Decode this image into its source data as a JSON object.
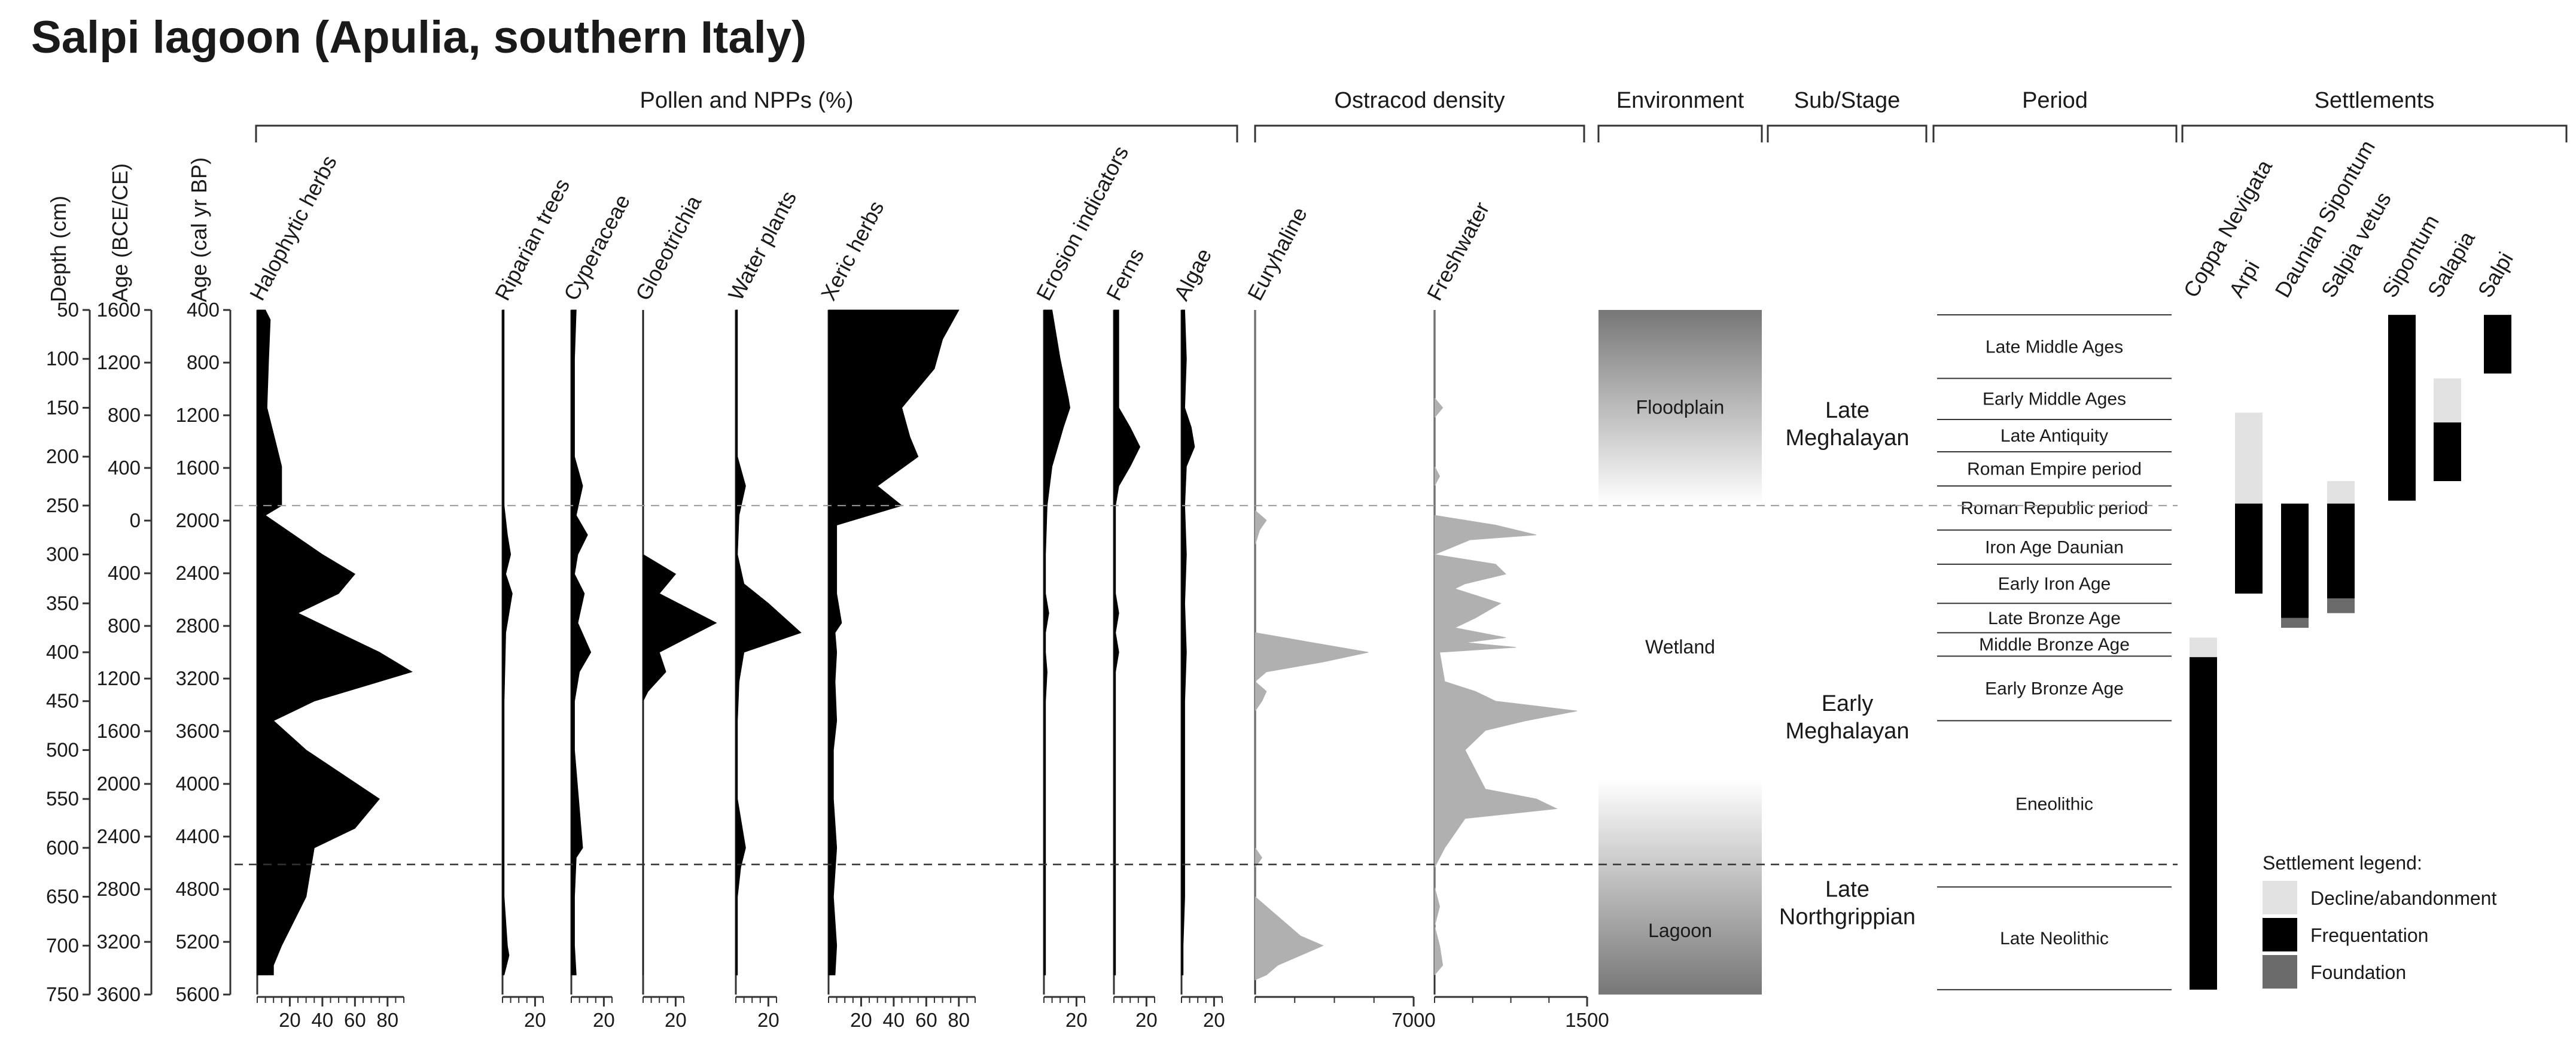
{
  "chart_data": {
    "type": "area",
    "title": "Salpi lagoon (Apulia, southern Italy)",
    "left_axes": [
      {
        "label": "Depth (cm)",
        "ticks": [
          "50",
          "100",
          "150",
          "200",
          "250",
          "300",
          "350",
          "400",
          "450",
          "500",
          "550",
          "600",
          "650",
          "700",
          "750"
        ]
      },
      {
        "label": "Age (BCE/CE)",
        "ticks": [
          "1600",
          "1200",
          "800",
          "400",
          "0",
          "400",
          "800",
          "1200",
          "1600",
          "2000",
          "2400",
          "2800",
          "3200",
          "3600"
        ]
      },
      {
        "label": "Age (cal yr BP)",
        "ticks": [
          "400",
          "800",
          "1200",
          "1600",
          "2000",
          "2400",
          "2800",
          "3200",
          "3600",
          "4000",
          "4400",
          "4800",
          "5200",
          "5600"
        ]
      }
    ],
    "depth_range": [
      50,
      750
    ],
    "group_headers": {
      "pollen": "Pollen and NPPs (%)",
      "ostracod": "Ostracod density",
      "environment": "Environment",
      "substage": "Sub/Stage",
      "period": "Period",
      "settlements": "Settlements"
    },
    "pollen_series": [
      {
        "name": "Halophytic herbs",
        "xmax": 90,
        "ticks": [
          "20",
          "40",
          "60",
          "80"
        ],
        "depth": [
          50,
          60,
          100,
          150,
          190,
          210,
          250,
          260,
          300,
          320,
          340,
          360,
          380,
          400,
          420,
          450,
          470,
          500,
          550,
          580,
          600,
          650,
          700,
          720,
          730
        ],
        "values": [
          5,
          8,
          7,
          6,
          12,
          15,
          15,
          5,
          40,
          60,
          50,
          25,
          50,
          75,
          95,
          35,
          10,
          30,
          75,
          60,
          35,
          30,
          15,
          10,
          10
        ]
      },
      {
        "name": "Riparian trees",
        "xmax": 25,
        "ticks": [
          "20"
        ],
        "depth": [
          50,
          150,
          250,
          280,
          300,
          320,
          340,
          380,
          450,
          550,
          600,
          650,
          700,
          710,
          730
        ],
        "values": [
          1,
          1,
          1,
          3,
          5,
          2,
          6,
          2,
          1,
          1,
          1,
          1,
          3,
          4,
          1
        ]
      },
      {
        "name": "Cyperaceae",
        "xmax": 25,
        "ticks": [
          "20"
        ],
        "depth": [
          50,
          100,
          150,
          200,
          230,
          260,
          280,
          300,
          320,
          340,
          370,
          400,
          420,
          450,
          500,
          600,
          610,
          650,
          700,
          730
        ],
        "values": [
          3,
          2,
          2,
          2,
          7,
          3,
          10,
          4,
          2,
          8,
          4,
          12,
          5,
          2,
          2,
          7,
          3,
          2,
          2,
          3
        ]
      },
      {
        "name": "Gloeotrichia",
        "xmax": 25,
        "ticks": [
          "20"
        ],
        "depth": [
          50,
          300,
          320,
          340,
          370,
          400,
          420,
          440,
          450,
          730
        ],
        "values": [
          0,
          0,
          20,
          10,
          45,
          10,
          14,
          3,
          0,
          0
        ]
      },
      {
        "name": "Water plants",
        "xmax": 25,
        "ticks": [
          "20"
        ],
        "depth": [
          50,
          100,
          150,
          200,
          230,
          260,
          300,
          330,
          350,
          380,
          400,
          430,
          470,
          500,
          550,
          600,
          620,
          650,
          700,
          730
        ],
        "values": [
          1,
          1,
          1,
          1,
          6,
          2,
          1,
          5,
          20,
          40,
          5,
          2,
          1,
          1,
          1,
          6,
          3,
          1,
          1,
          1
        ]
      },
      {
        "name": "Xeric herbs",
        "xmax": 90,
        "ticks": [
          "20",
          "40",
          "60",
          "80"
        ],
        "depth": [
          50,
          80,
          110,
          150,
          180,
          200,
          230,
          250,
          270,
          300,
          340,
          370,
          380,
          400,
          430,
          470,
          500,
          550,
          600,
          650,
          700,
          730
        ],
        "values": [
          80,
          70,
          65,
          45,
          50,
          55,
          30,
          45,
          5,
          5,
          5,
          8,
          4,
          5,
          4,
          5,
          3,
          3,
          5,
          3,
          5,
          4
        ]
      },
      {
        "name": "Erosion indicators",
        "xmax": 25,
        "ticks": [
          "20"
        ],
        "depth": [
          50,
          100,
          140,
          150,
          170,
          210,
          250,
          300,
          340,
          360,
          380,
          400,
          420,
          450,
          730
        ],
        "values": [
          5,
          10,
          15,
          16,
          12,
          5,
          2,
          1,
          1,
          3,
          1,
          1,
          2,
          1,
          1
        ]
      },
      {
        "name": "Ferns",
        "xmax": 25,
        "ticks": [
          "20"
        ],
        "depth": [
          50,
          150,
          170,
          190,
          210,
          230,
          250,
          300,
          340,
          360,
          380,
          400,
          420,
          450,
          730
        ],
        "values": [
          3,
          3,
          10,
          16,
          10,
          3,
          1,
          1,
          1,
          3,
          1,
          3,
          1,
          1,
          1
        ]
      },
      {
        "name": "Algae",
        "xmax": 25,
        "ticks": [
          "20"
        ],
        "depth": [
          50,
          100,
          150,
          170,
          190,
          210,
          250,
          300,
          350,
          400,
          450,
          500,
          600,
          650,
          700,
          730
        ],
        "values": [
          2,
          3,
          2,
          6,
          8,
          3,
          2,
          3,
          2,
          3,
          2,
          2,
          2,
          2,
          1,
          1
        ]
      }
    ],
    "ostracod_series": [
      {
        "name": "Euryhaline",
        "xmax": 7000,
        "ticks": [
          "7000"
        ],
        "depth": [
          50,
          255,
          265,
          275,
          290,
          380,
          390,
          400,
          410,
          420,
          430,
          440,
          450,
          460,
          600,
          610,
          620,
          650,
          670,
          690,
          700,
          720,
          730,
          735
        ],
        "values": [
          0,
          0,
          500,
          200,
          0,
          0,
          2500,
          5000,
          3000,
          500,
          0,
          500,
          300,
          0,
          0,
          300,
          0,
          0,
          1000,
          2000,
          3000,
          1000,
          500,
          0
        ]
      },
      {
        "name": "Freshwater",
        "xmax": 1500,
        "ticks": [
          "1500"
        ],
        "depth": [
          50,
          140,
          150,
          160,
          210,
          220,
          230,
          260,
          270,
          280,
          285,
          300,
          310,
          320,
          330,
          335,
          350,
          365,
          375,
          385,
          390,
          395,
          400,
          430,
          440,
          450,
          460,
          470,
          480,
          500,
          540,
          550,
          560,
          570,
          600,
          620,
          640,
          660,
          680,
          700,
          720,
          730
        ],
        "values": [
          0,
          0,
          80,
          0,
          0,
          50,
          0,
          0,
          600,
          1000,
          350,
          0,
          600,
          700,
          300,
          200,
          650,
          400,
          200,
          700,
          300,
          800,
          50,
          100,
          400,
          600,
          1400,
          900,
          500,
          300,
          500,
          1000,
          1200,
          300,
          100,
          0,
          0,
          50,
          0,
          50,
          80,
          0
        ]
      }
    ],
    "environment": [
      {
        "label": "Floodplain",
        "from": 50,
        "to": 250
      },
      {
        "label": "Wetland",
        "from": 250,
        "to": 620
      },
      {
        "label": "Lagoon",
        "from": 620,
        "to": 750
      }
    ],
    "substages": [
      {
        "label": "Late",
        "label2": "Meghalayan",
        "depth": 165
      },
      {
        "label": "Early",
        "label2": "Meghalayan",
        "depth": 465
      },
      {
        "label": "Late",
        "label2": "Northgrippian",
        "depth": 655
      }
    ],
    "periods": [
      {
        "name": "Late Middle Ages",
        "from": 55,
        "to": 120
      },
      {
        "name": "Early Middle Ages",
        "from": 120,
        "to": 162
      },
      {
        "name": "Late Antiquity",
        "from": 162,
        "to": 195
      },
      {
        "name": "Roman Empire period",
        "from": 195,
        "to": 230
      },
      {
        "name": "Roman Republic period",
        "from": 230,
        "to": 275
      },
      {
        "name": "Iron Age Daunian",
        "from": 275,
        "to": 310
      },
      {
        "name": "Early Iron Age",
        "from": 310,
        "to": 350
      },
      {
        "name": "Late Bronze Age",
        "from": 350,
        "to": 380
      },
      {
        "name": "Middle Bronze Age",
        "from": 380,
        "to": 404
      },
      {
        "name": "Early Bronze Age",
        "from": 404,
        "to": 470
      },
      {
        "name": "Eneolithic",
        "from": 470,
        "to": 640
      },
      {
        "name": "Late Neolithic",
        "from": 640,
        "to": 745
      }
    ],
    "settlements": [
      {
        "name": "Coppa Nevigata",
        "bars": [
          {
            "state": "decline",
            "from": 385,
            "to": 405
          },
          {
            "state": "frequentation",
            "from": 405,
            "to": 745
          }
        ]
      },
      {
        "name": "Arpi",
        "bars": [
          {
            "state": "decline",
            "from": 155,
            "to": 248
          },
          {
            "state": "frequentation",
            "from": 248,
            "to": 340
          }
        ]
      },
      {
        "name": "Daunian Sipontum",
        "bars": [
          {
            "state": "frequentation",
            "from": 248,
            "to": 365
          },
          {
            "state": "foundation",
            "from": 365,
            "to": 375
          }
        ]
      },
      {
        "name": "Salpia vetus",
        "bars": [
          {
            "state": "decline",
            "from": 225,
            "to": 248
          },
          {
            "state": "frequentation",
            "from": 248,
            "to": 345
          },
          {
            "state": "foundation",
            "from": 345,
            "to": 360
          }
        ]
      },
      {
        "name": "Sipontum",
        "bars": [
          {
            "state": "frequentation",
            "from": 55,
            "to": 245
          }
        ]
      },
      {
        "name": "Salapia",
        "bars": [
          {
            "state": "decline",
            "from": 120,
            "to": 165
          },
          {
            "state": "frequentation",
            "from": 165,
            "to": 225
          }
        ]
      },
      {
        "name": "Salpi",
        "bars": [
          {
            "state": "frequentation",
            "from": 55,
            "to": 115
          }
        ]
      }
    ],
    "legend": {
      "title": "Settlement legend:",
      "items": [
        {
          "label": "Decline/abandonment",
          "state": "decline"
        },
        {
          "label": "Frequentation",
          "state": "frequentation"
        },
        {
          "label": "Foundation",
          "state": "foundation"
        }
      ]
    },
    "state_colors": {
      "decline": "#e2e2e2",
      "frequentation": "#000000",
      "foundation": "#6b6b6b"
    },
    "colors": {
      "pollen_fill": "#000000",
      "ostracod_fill": "#b0b0b0",
      "line": "#333333"
    }
  }
}
